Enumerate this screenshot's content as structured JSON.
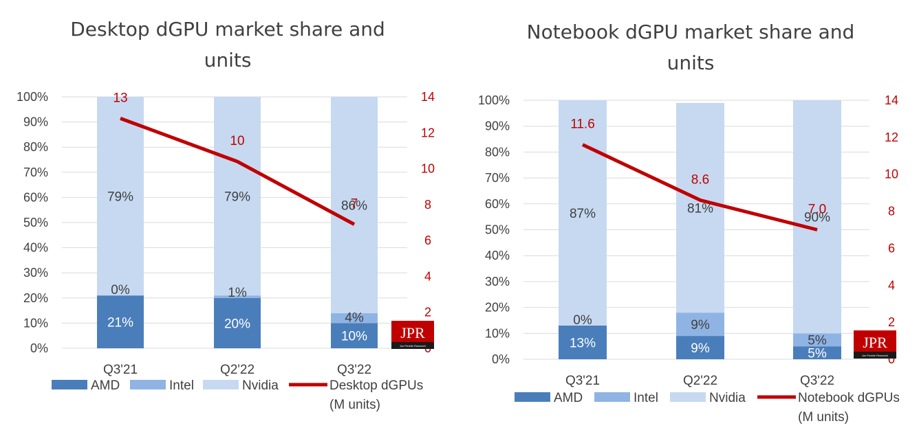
{
  "colors": {
    "amd": "#4a7ebb",
    "intel": "#8fb4e3",
    "nvidia": "#c6d9f1",
    "line": "#c00000",
    "text": "#404040"
  },
  "watermark": {
    "text": "JPR",
    "subtext": "Jon Peddie Research"
  },
  "chart_data": [
    {
      "type": "bar",
      "stacked": true,
      "title_lines": [
        "Desktop dGPU market share and",
        "units"
      ],
      "categories": [
        "Q3'21",
        "Q2'22",
        "Q3'22"
      ],
      "ylim": [
        0,
        100
      ],
      "y2lim": [
        0,
        14
      ],
      "yticks": [
        "0%",
        "10%",
        "20%",
        "30%",
        "40%",
        "50%",
        "60%",
        "70%",
        "80%",
        "90%",
        "100%"
      ],
      "y2ticks": [
        "0",
        "2",
        "4",
        "6",
        "8",
        "10",
        "12",
        "14"
      ],
      "series": [
        {
          "name": "AMD",
          "values": [
            21,
            20,
            10
          ],
          "labels": [
            "21%",
            "20%",
            "10%"
          ]
        },
        {
          "name": "Intel",
          "values": [
            0,
            1,
            4
          ],
          "labels": [
            "0%",
            "1%",
            "4%"
          ]
        },
        {
          "name": "Nvidia",
          "values": [
            79,
            79,
            86
          ],
          "labels": [
            "79%",
            "79%",
            "86%"
          ]
        }
      ],
      "line": {
        "name_lines": [
          "Desktop dGPUs",
          "(M units)"
        ],
        "values": [
          12.8,
          10.4,
          6.9
        ],
        "labels": [
          "13",
          "10",
          "7"
        ]
      },
      "legend": "bottom"
    },
    {
      "type": "bar",
      "stacked": true,
      "title_lines": [
        "Notebook dGPU market share and",
        "units"
      ],
      "categories": [
        "Q3'21",
        "Q2'22",
        "Q3'22"
      ],
      "ylim": [
        0,
        100
      ],
      "y2lim": [
        0,
        14
      ],
      "yticks": [
        "0%",
        "10%",
        "20%",
        "30%",
        "40%",
        "50%",
        "60%",
        "70%",
        "80%",
        "90%",
        "100%"
      ],
      "y2ticks": [
        "0",
        "2",
        "4",
        "6",
        "8",
        "10",
        "12",
        "14"
      ],
      "series": [
        {
          "name": "AMD",
          "values": [
            13,
            9,
            5
          ],
          "labels": [
            "13%",
            "9%",
            "5%"
          ]
        },
        {
          "name": "Intel",
          "values": [
            0,
            9,
            5
          ],
          "labels": [
            "0%",
            "9%",
            "5%"
          ]
        },
        {
          "name": "Nvidia",
          "values": [
            87,
            81,
            90
          ],
          "labels": [
            "87%",
            "81%",
            "90%"
          ]
        }
      ],
      "line": {
        "name_lines": [
          "Notebook dGPUs",
          "(M units)"
        ],
        "values": [
          11.6,
          8.6,
          7.0
        ],
        "labels": [
          "11.6",
          "8.6",
          "7.0"
        ]
      },
      "legend": "bottom"
    }
  ]
}
